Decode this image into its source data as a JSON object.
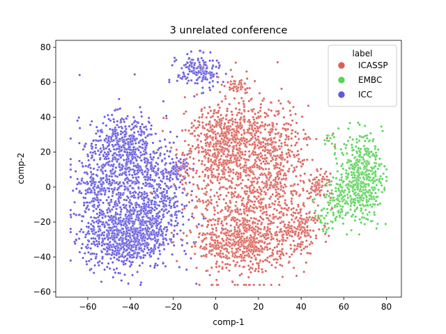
{
  "chart_data": {
    "type": "scatter",
    "title": "3 unrelated conference",
    "xlabel": "comp-1",
    "ylabel": "comp-2",
    "xlim": [
      -75,
      87
    ],
    "ylim": [
      -63,
      84
    ],
    "xticks": [
      -60,
      -40,
      -20,
      0,
      20,
      40,
      60,
      80
    ],
    "yticks": [
      -60,
      -40,
      -20,
      0,
      20,
      40,
      60,
      80
    ],
    "grid": false,
    "legend": {
      "title": "label",
      "placement": "top-right"
    },
    "series": [
      {
        "name": "ICASSP",
        "color": "#db5f57",
        "clusters": [
          {
            "cx": 15,
            "cy": 0,
            "sx": 14,
            "sy": 24,
            "n": 900
          },
          {
            "cx": 15,
            "cy": -32,
            "sx": 9,
            "sy": 8,
            "n": 420
          },
          {
            "cx": 12,
            "cy": 30,
            "sx": 12,
            "sy": 8,
            "n": 360
          },
          {
            "cx": 0,
            "cy": 20,
            "sx": 6,
            "sy": 10,
            "n": 200
          },
          {
            "cx": 38,
            "cy": -22,
            "sx": 5,
            "sy": 8,
            "n": 160
          },
          {
            "cx": 30,
            "cy": 12,
            "sx": 6,
            "sy": 14,
            "n": 160
          },
          {
            "cx": 48,
            "cy": 1,
            "sx": 3,
            "sy": 4,
            "n": 70
          },
          {
            "cx": 10,
            "cy": 58,
            "sx": 3,
            "sy": 3,
            "n": 45
          },
          {
            "cx": -3,
            "cy": -30,
            "sx": 4,
            "sy": 10,
            "n": 80
          },
          {
            "cx": -14,
            "cy": 12,
            "sx": 3,
            "sy": 6,
            "n": 40
          }
        ]
      },
      {
        "name": "EMBC",
        "color": "#57d356",
        "clusters": [
          {
            "cx": 68,
            "cy": 6,
            "sx": 5,
            "sy": 12,
            "n": 480
          },
          {
            "cx": 58,
            "cy": -8,
            "sx": 4,
            "sy": 6,
            "n": 90
          },
          {
            "cx": 50,
            "cy": -18,
            "sx": 3,
            "sy": 5,
            "n": 35
          },
          {
            "cx": 53,
            "cy": 27,
            "sx": 1.5,
            "sy": 2,
            "n": 12
          }
        ]
      },
      {
        "name": "ICC",
        "color": "#6257dc",
        "clusters": [
          {
            "cx": -42,
            "cy": -30,
            "sx": 10,
            "sy": 8,
            "n": 650
          },
          {
            "cx": -42,
            "cy": 0,
            "sx": 11,
            "sy": 18,
            "n": 780
          },
          {
            "cx": -42,
            "cy": 24,
            "sx": 8,
            "sy": 8,
            "n": 320
          },
          {
            "cx": -27,
            "cy": -10,
            "sx": 7,
            "sy": 15,
            "n": 250
          },
          {
            "cx": -8,
            "cy": 66,
            "sx": 5,
            "sy": 5,
            "n": 170
          },
          {
            "cx": -18,
            "cy": 10,
            "sx": 2.5,
            "sy": 3,
            "n": 60
          },
          {
            "cx": -55,
            "cy": -5,
            "sx": 5,
            "sy": 10,
            "n": 120
          }
        ]
      }
    ]
  }
}
